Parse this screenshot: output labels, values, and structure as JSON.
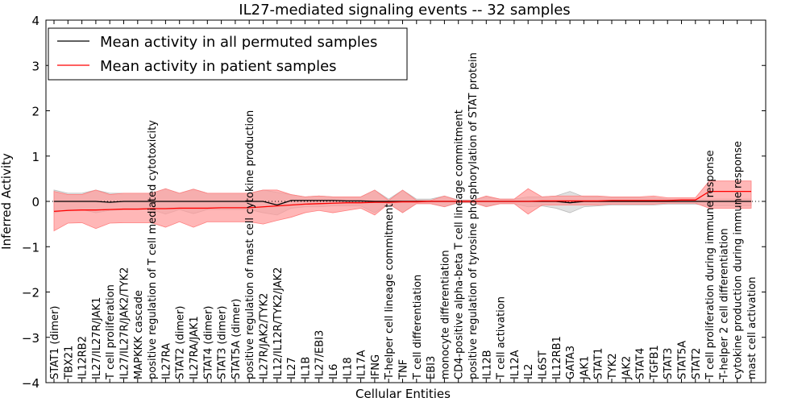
{
  "chart_data": {
    "type": "line",
    "title": "IL27-mediated signaling events -- 32 samples",
    "xlabel": "Cellular Entities",
    "ylabel": "Inferred Activity",
    "ylim": [
      -4,
      4
    ],
    "yticks": [
      -4,
      -3,
      -2,
      -1,
      0,
      1,
      2,
      3,
      4
    ],
    "ytick_labels": [
      "−4",
      "−3",
      "−2",
      "−1",
      "0",
      "1",
      "2",
      "3",
      "4"
    ],
    "legend_placement": "top-left",
    "categories": [
      "STAT1 (dimer)",
      "TBX21",
      "IL12RB2",
      "IL27/IL27R/JAK1",
      "T cell proliferation",
      "IL27/IL27R/JAK2/TYK2",
      "MAPKKK cascade",
      "positive regulation of T cell mediated cytotoxicity",
      "IL27RA",
      "STAT2 (dimer)",
      "IL27RA/JAK1",
      "STAT4 (dimer)",
      "STAT3 (dimer)",
      "STAT5A (dimer)",
      "positive regulation of mast cell cytokine production",
      "IL27R/JAK2/TYK2",
      "IL12/IL12R/TYK2/JAK2",
      "IL27",
      "IL1B",
      "IL27/EBI3",
      "IL6",
      "IL18",
      "IL17A",
      "IFNG",
      "T-helper cell lineage commitment",
      "TNF",
      "T cell differentiation",
      "EBI3",
      "monocyte differentiation",
      "CD4-positive alpha-beta T cell lineage commitment",
      "positive regulation of tyrosine phosphorylation of STAT protein",
      "IL12B",
      "T cell activation",
      "IL12A",
      "IL2",
      "IL6ST",
      "IL12RB1",
      "GATA3",
      "JAK1",
      "STAT1",
      "TYK2",
      "JAK2",
      "STAT4",
      "TGFB1",
      "STAT3",
      "STAT5A",
      "STAT2",
      "T cell proliferation during immune response",
      "T-helper 2 cell differentiation",
      "cytokine production during immune response",
      "mast cell activation"
    ],
    "series": [
      {
        "name": "Mean activity in all permuted samples",
        "color": "#000000",
        "band_color": "#cccccc",
        "values": [
          0,
          0,
          0,
          0,
          -0.02,
          0,
          0,
          0,
          0,
          0,
          0,
          0,
          0,
          0,
          0,
          0,
          -0.08,
          0.02,
          0.02,
          0.02,
          0.02,
          0.01,
          0.01,
          0,
          0,
          0,
          0,
          0,
          0,
          0,
          0,
          0,
          0,
          0,
          0,
          0,
          0,
          -0.03,
          0,
          0,
          0,
          0,
          0,
          0,
          0,
          0,
          0,
          0,
          0,
          0,
          0
        ],
        "upper": [
          0.25,
          0.18,
          0.18,
          0.25,
          0.18,
          0.18,
          0.18,
          0.18,
          0.28,
          0.18,
          0.27,
          0.18,
          0.18,
          0.18,
          0.18,
          0.25,
          0.2,
          0.15,
          0.1,
          0.12,
          0.1,
          0.1,
          0.1,
          0.25,
          0.05,
          0.25,
          0.05,
          0.05,
          0.12,
          0.03,
          0.03,
          0.1,
          0.05,
          0.05,
          0.1,
          0.1,
          0.12,
          0.22,
          0.1,
          0.1,
          0.08,
          0.08,
          0.08,
          0.08,
          0.05,
          0.05,
          0.05,
          0.05,
          0.05,
          0.05,
          0.05
        ],
        "lower": [
          -0.25,
          -0.18,
          -0.18,
          -0.25,
          -0.2,
          -0.18,
          -0.18,
          -0.18,
          -0.28,
          -0.18,
          -0.27,
          -0.18,
          -0.18,
          -0.18,
          -0.18,
          -0.25,
          -0.3,
          -0.15,
          -0.12,
          -0.12,
          -0.1,
          -0.1,
          -0.1,
          -0.25,
          -0.05,
          -0.25,
          -0.05,
          -0.05,
          -0.12,
          -0.03,
          -0.03,
          -0.1,
          -0.05,
          -0.05,
          -0.12,
          -0.1,
          -0.15,
          -0.25,
          -0.12,
          -0.1,
          -0.08,
          -0.08,
          -0.08,
          -0.08,
          -0.06,
          -0.06,
          -0.06,
          -0.1,
          -0.1,
          -0.1,
          -0.1
        ]
      },
      {
        "name": "Mean activity in patient samples",
        "color": "#ff0000",
        "band_color": "#ff9999",
        "values": [
          -0.22,
          -0.2,
          -0.19,
          -0.19,
          -0.18,
          -0.17,
          -0.17,
          -0.16,
          -0.16,
          -0.15,
          -0.15,
          -0.15,
          -0.14,
          -0.14,
          -0.14,
          -0.12,
          -0.1,
          -0.08,
          -0.06,
          -0.05,
          -0.04,
          -0.03,
          -0.03,
          -0.02,
          -0.02,
          -0.01,
          -0.01,
          0,
          0,
          0,
          0,
          0,
          0,
          0,
          0,
          0.01,
          0.01,
          0.01,
          0.01,
          0.01,
          0.02,
          0.02,
          0.02,
          0.02,
          0.02,
          0.03,
          0.03,
          0.22,
          0.22,
          0.22,
          0.22
        ],
        "upper": [
          0.22,
          0.15,
          0.15,
          0.25,
          0.15,
          0.18,
          0.18,
          0.18,
          0.28,
          0.18,
          0.27,
          0.18,
          0.18,
          0.18,
          0.18,
          0.25,
          0.25,
          0.15,
          0.1,
          0.12,
          0.1,
          0.1,
          0.1,
          0.25,
          0.02,
          0.25,
          0.02,
          0.02,
          0.12,
          0.02,
          0.02,
          0.12,
          0.05,
          0.05,
          0.28,
          0.1,
          0.12,
          0.12,
          0.12,
          0.12,
          0.1,
          0.1,
          0.1,
          0.12,
          0.08,
          0.08,
          0.08,
          0.45,
          0.45,
          0.45,
          0.45
        ],
        "lower": [
          -0.65,
          -0.48,
          -0.47,
          -0.6,
          -0.48,
          -0.47,
          -0.47,
          -0.47,
          -0.57,
          -0.45,
          -0.57,
          -0.45,
          -0.45,
          -0.45,
          -0.45,
          -0.5,
          -0.42,
          -0.35,
          -0.25,
          -0.2,
          -0.25,
          -0.2,
          -0.15,
          -0.3,
          -0.05,
          -0.25,
          -0.05,
          -0.05,
          -0.12,
          -0.02,
          -0.02,
          -0.12,
          -0.05,
          -0.05,
          -0.28,
          -0.08,
          -0.08,
          -0.08,
          -0.08,
          -0.08,
          -0.06,
          -0.06,
          -0.06,
          -0.06,
          -0.04,
          -0.04,
          -0.04,
          -0.15,
          -0.15,
          -0.15,
          -0.15
        ]
      }
    ]
  }
}
